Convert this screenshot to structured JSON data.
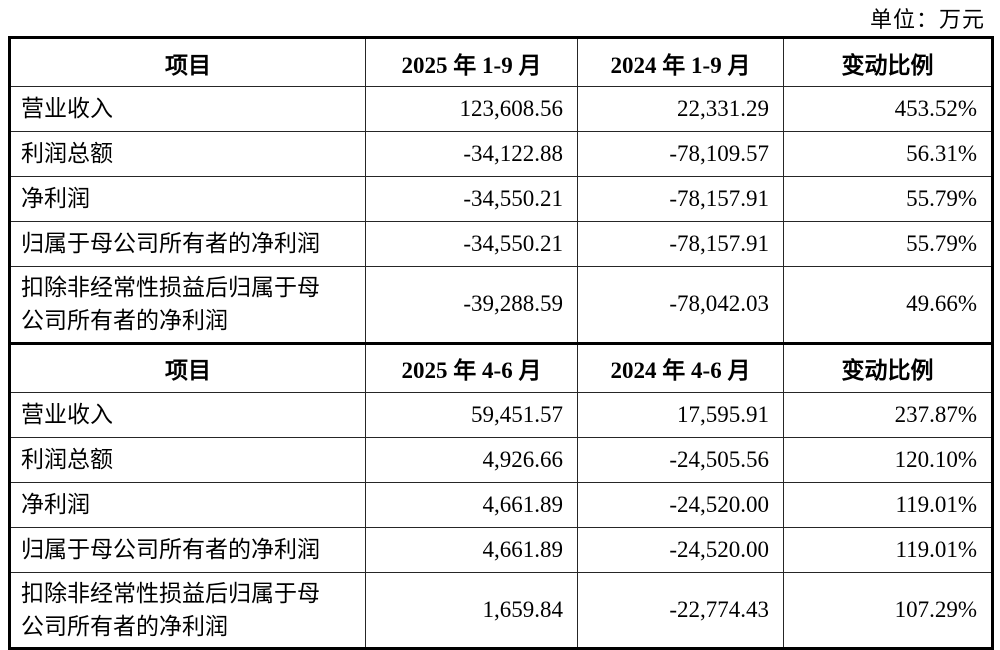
{
  "unit_label": "单位：万元",
  "table": {
    "sections": [
      {
        "headers": {
          "item": "项目",
          "p1": "2025 年 1-9 月",
          "p2": "2024 年 1-9 月",
          "change": "变动比例"
        },
        "rows": [
          {
            "item": "营业收入",
            "v1": "123,608.56",
            "v2": "22,331.29",
            "change": "453.52%"
          },
          {
            "item": "利润总额",
            "v1": "-34,122.88",
            "v2": "-78,109.57",
            "change": "56.31%"
          },
          {
            "item": "净利润",
            "v1": "-34,550.21",
            "v2": "-78,157.91",
            "change": "55.79%"
          },
          {
            "item": "归属于母公司所有者的净利润",
            "v1": "-34,550.21",
            "v2": "-78,157.91",
            "change": "55.79%"
          },
          {
            "item": "扣除非经常性损益后归属于母\n公司所有者的净利润",
            "v1": "-39,288.59",
            "v2": "-78,042.03",
            "change": "49.66%"
          }
        ]
      },
      {
        "headers": {
          "item": "项目",
          "p1": "2025 年 4-6 月",
          "p2": "2024 年 4-6 月",
          "change": "变动比例"
        },
        "rows": [
          {
            "item": "营业收入",
            "v1": "59,451.57",
            "v2": "17,595.91",
            "change": "237.87%"
          },
          {
            "item": "利润总额",
            "v1": "4,926.66",
            "v2": "-24,505.56",
            "change": "120.10%"
          },
          {
            "item": "净利润",
            "v1": "4,661.89",
            "v2": "-24,520.00",
            "change": "119.01%"
          },
          {
            "item": "归属于母公司所有者的净利润",
            "v1": "4,661.89",
            "v2": "-24,520.00",
            "change": "119.01%"
          },
          {
            "item": "扣除非经常性损益后归属于母\n公司所有者的净利润",
            "v1": "1,659.84",
            "v2": "-22,774.43",
            "change": "107.29%"
          }
        ]
      }
    ]
  }
}
